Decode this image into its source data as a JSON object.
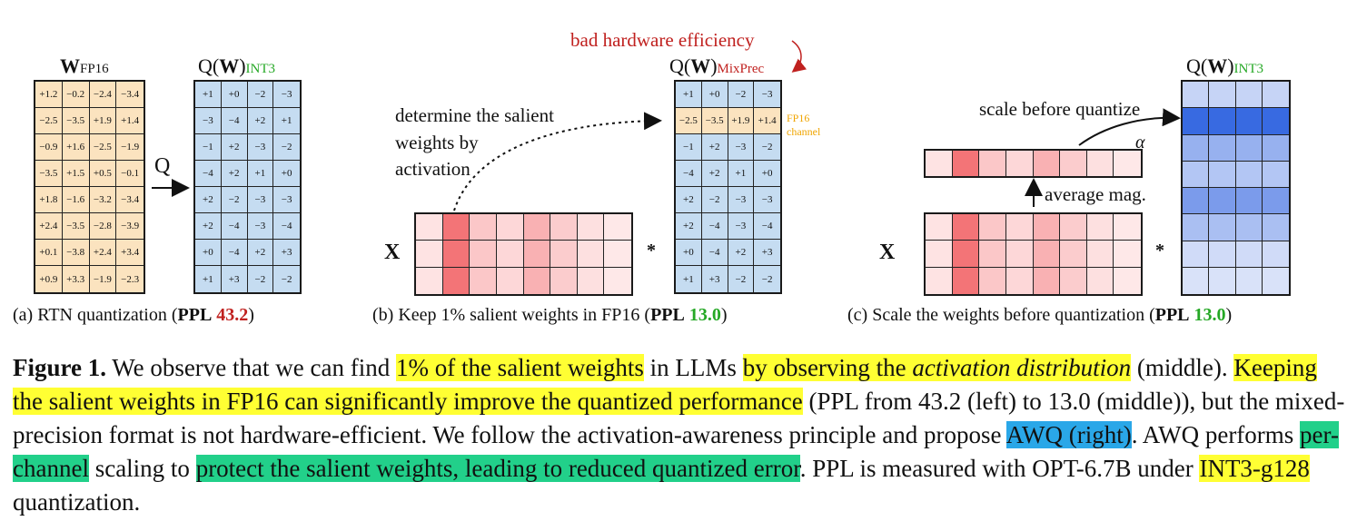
{
  "panel_a": {
    "title_main": "W",
    "title_sub": "FP16",
    "q_title_main": "Q(W)",
    "q_title_sub": "INT3",
    "q_label": "Q",
    "weights": [
      [
        "+1.2",
        "−0.2",
        "−2.4",
        "−3.4"
      ],
      [
        "−2.5",
        "−3.5",
        "+1.9",
        "+1.4"
      ],
      [
        "−0.9",
        "+1.6",
        "−2.5",
        "−1.9"
      ],
      [
        "−3.5",
        "+1.5",
        "+0.5",
        "−0.1"
      ],
      [
        "+1.8",
        "−1.6",
        "−3.2",
        "−3.4"
      ],
      [
        "+2.4",
        "−3.5",
        "−2.8",
        "−3.9"
      ],
      [
        "+0.1",
        "−3.8",
        "+2.4",
        "+3.4"
      ],
      [
        "+0.9",
        "+3.3",
        "−1.9",
        "−2.3"
      ]
    ],
    "quantized": [
      [
        "+1",
        "+0",
        "−2",
        "−3"
      ],
      [
        "−3",
        "−4",
        "+2",
        "+1"
      ],
      [
        "−1",
        "+2",
        "−3",
        "−2"
      ],
      [
        "−4",
        "+2",
        "+1",
        "+0"
      ],
      [
        "+2",
        "−2",
        "−3",
        "−3"
      ],
      [
        "+2",
        "−4",
        "−3",
        "−4"
      ],
      [
        "+0",
        "−4",
        "+2",
        "+3"
      ],
      [
        "+1",
        "+3",
        "−2",
        "−2"
      ]
    ],
    "caption_pre": "(a) RTN quantization (",
    "caption_ppl": "PPL",
    "caption_val": "43.2",
    "caption_post": ")"
  },
  "panel_b": {
    "annotation_top": "bad hardware efficiency",
    "q_title_main": "Q(W)",
    "q_title_sub": "MixPrec",
    "annotation_line1": "determine the salient",
    "annotation_line2": "weights by",
    "annotation_line3": "activation",
    "x_label": "X",
    "mult": "*",
    "fp16_label_line1": "FP16",
    "fp16_label_line2": "channel",
    "activation_intensity": [
      [
        0.08,
        0.75,
        0.25,
        0.15,
        0.38,
        0.22,
        0.1,
        0.05
      ],
      [
        0.08,
        0.75,
        0.25,
        0.15,
        0.38,
        0.22,
        0.1,
        0.05
      ],
      [
        0.08,
        0.75,
        0.25,
        0.15,
        0.38,
        0.22,
        0.1,
        0.05
      ]
    ],
    "weights": [
      [
        "+1",
        "+0",
        "−2",
        "−3"
      ],
      [
        "−2.5",
        "−3.5",
        "+1.9",
        "+1.4"
      ],
      [
        "−1",
        "+2",
        "−3",
        "−2"
      ],
      [
        "−4",
        "+2",
        "+1",
        "+0"
      ],
      [
        "+2",
        "−2",
        "−3",
        "−3"
      ],
      [
        "+2",
        "−4",
        "−3",
        "−4"
      ],
      [
        "+0",
        "−4",
        "+2",
        "+3"
      ],
      [
        "+1",
        "+3",
        "−2",
        "−2"
      ]
    ],
    "caption_pre": "(b) Keep 1% salient weights in FP16 (",
    "caption_ppl": "PPL",
    "caption_val": "13.0",
    "caption_post": ")"
  },
  "panel_c": {
    "q_title_main": "Q(W)",
    "q_title_sub": "INT3",
    "scale_label": "scale before quantize",
    "alpha": "α",
    "avg_label": "average mag.",
    "x_label": "X",
    "mult": "*",
    "avg_intensity": [
      0.08,
      0.75,
      0.25,
      0.15,
      0.38,
      0.22,
      0.1,
      0.05
    ],
    "row_intensity": [
      0.2,
      0.95,
      0.45,
      0.3,
      0.6,
      0.35,
      0.15,
      0.1
    ],
    "caption_pre": "(c) Scale the weights before quantization (",
    "caption_ppl": "PPL",
    "caption_val": "13.0",
    "caption_post": ")"
  },
  "paragraph": {
    "label": "Figure 1.",
    "s1": " We observe that we can find ",
    "h1": "1% of the salient weights",
    "s2": " in LLMs ",
    "h2a": "by observing the ",
    "h2b": "activation distribution",
    "s3": " (middle). ",
    "h3": "Keeping the salient weights in FP16 can significantly improve the quantized performance",
    "s4": " (PPL from 43.2 (left) to 13.0 (middle)), but the mixed-precision format is not hardware-efficient. We follow the activation-awareness principle and propose ",
    "h4": "AWQ (right)",
    "s5": ". AWQ performs ",
    "h5": "per-channel",
    "s6": " scaling to ",
    "h6": "protect the salient weights, leading to reduced quantized error",
    "s7": ". PPL is measured with OPT-6.7B under ",
    "h7": "INT3-g128",
    "s8": " quantization."
  },
  "colors": {
    "orange_cell": "#fbe3bf",
    "blue_cell": "#c5dcf1",
    "red_strong": "#ef4b4f",
    "blue_strong": "#2f63e0"
  }
}
